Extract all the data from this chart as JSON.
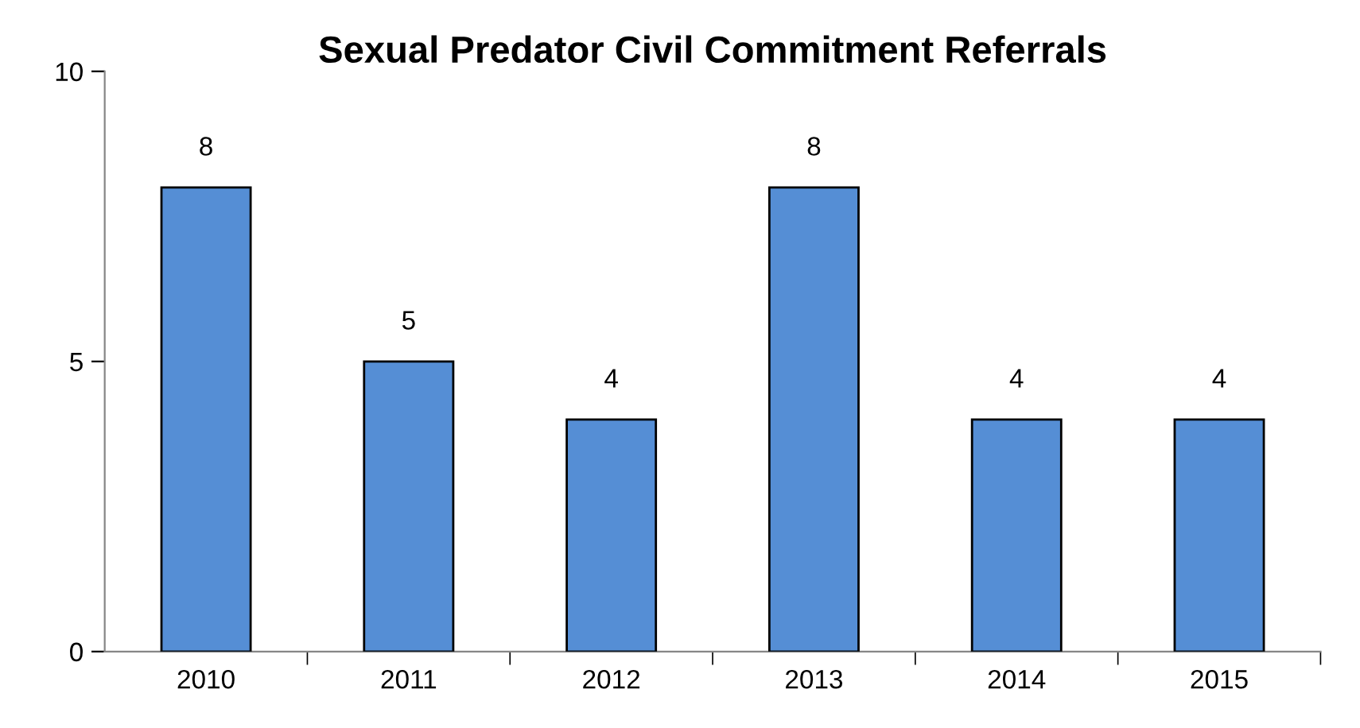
{
  "chart_data": {
    "type": "bar",
    "title": "Sexual Predator Civil Commitment Referrals",
    "categories": [
      "2010",
      "2011",
      "2012",
      "2013",
      "2014",
      "2015"
    ],
    "values": [
      8,
      5,
      4,
      8,
      4,
      4
    ],
    "color": "#558ed5",
    "ylim": [
      0,
      10
    ],
    "yticks": [
      0,
      5,
      10
    ],
    "grid": false,
    "data_labels": true
  }
}
